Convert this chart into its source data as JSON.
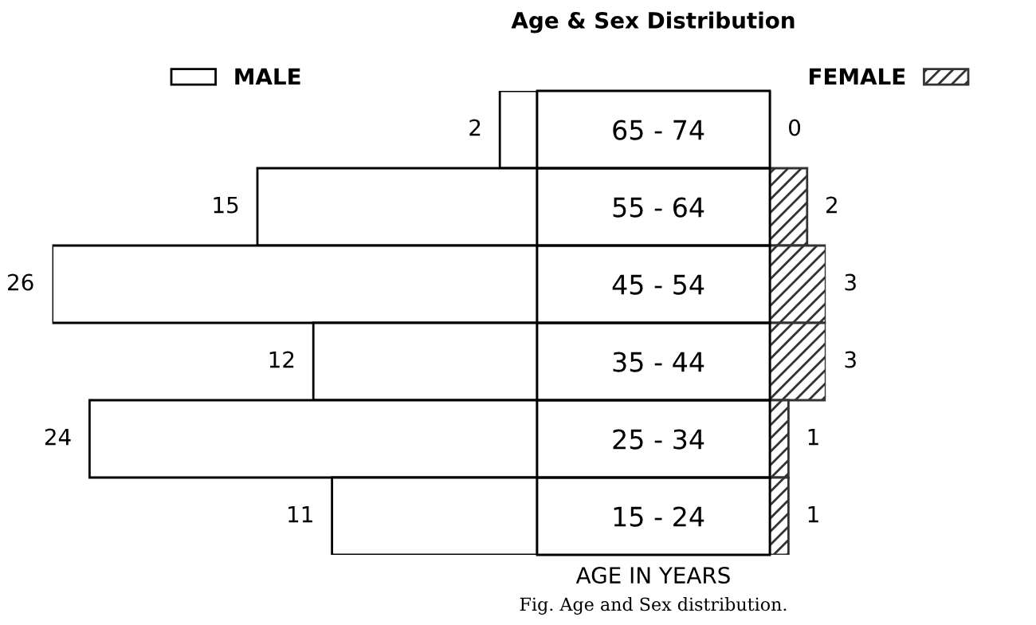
{
  "chart_data": [
    {
      "type": "bar",
      "orientation": "horizontal",
      "categories": [
        "65 - 74",
        "55 - 64",
        "45 - 54",
        "35 - 44",
        "25 - 34",
        "15 - 24"
      ],
      "series": [
        {
          "name": "MALE",
          "color": "#ffffff",
          "values": [
            2,
            15,
            26,
            12,
            24,
            11
          ]
        }
      ],
      "data_labels": true,
      "legend": "top left"
    },
    {
      "type": "bar",
      "orientation": "horizontal",
      "title": "Age & Sex Distribution",
      "xlabel": "AGE IN YEARS",
      "series": [
        {
          "name": "FEMALE",
          "color": "#333333",
          "values": [
            0,
            2,
            3,
            3,
            1,
            1
          ]
        }
      ],
      "data_labels": true,
      "legend": "top right",
      "annotations": [
        "Fig. Age and Sex distribution."
      ]
    }
  ]
}
